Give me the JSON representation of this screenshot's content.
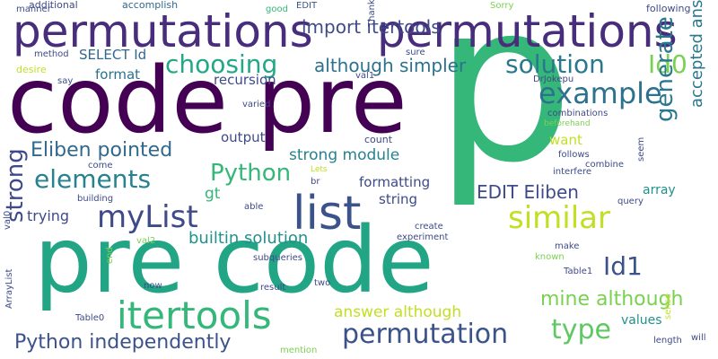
{
  "words": [
    {
      "text": "p",
      "color": "#35b779",
      "rot": 0
    },
    {
      "text": "code pre",
      "color": "#440154",
      "rot": 0
    },
    {
      "text": "pre code",
      "color": "#21a585",
      "rot": 0
    },
    {
      "text": "permutations",
      "color": "#472d7b",
      "rot": 0
    },
    {
      "text": "permutations",
      "color": "#472d7b",
      "rot": 0
    },
    {
      "text": "list",
      "color": "#3b528b",
      "rot": 0
    },
    {
      "text": "itertools",
      "color": "#35b779",
      "rot": 0
    },
    {
      "text": "myList",
      "color": "#3e4a89",
      "rot": 0
    },
    {
      "text": "similar",
      "color": "#c2df23",
      "rot": 0
    },
    {
      "text": "permutation",
      "color": "#3b528b",
      "rot": 0
    },
    {
      "text": "example",
      "color": "#2c728e",
      "rot": 0
    },
    {
      "text": "choosing",
      "color": "#22a884",
      "rot": 0
    },
    {
      "text": "solution",
      "color": "#2a788e",
      "rot": 0
    },
    {
      "text": "Id0",
      "color": "#7ad151",
      "rot": 0
    },
    {
      "text": "elements",
      "color": "#26828e",
      "rot": 0
    },
    {
      "text": "Python",
      "color": "#35b779",
      "rot": 0
    },
    {
      "text": "Eliben pointed",
      "color": "#31688e",
      "rot": 0
    },
    {
      "text": "Python independently",
      "color": "#3b528b",
      "rot": 0
    },
    {
      "text": "type",
      "color": "#5ec962",
      "rot": 0
    },
    {
      "text": "mine although",
      "color": "#7ad151",
      "rot": 0
    },
    {
      "text": "generate",
      "color": "#2a788e",
      "rot": -90
    },
    {
      "text": "strong",
      "color": "#3e4a89",
      "rot": -90
    },
    {
      "text": "accepted answer",
      "color": "#2a788e",
      "rot": -90
    },
    {
      "text": "Id1",
      "color": "#3b528b",
      "rot": 0
    },
    {
      "text": "EDIT Eliben",
      "color": "#3e4a89",
      "rot": 0
    },
    {
      "text": "although simpler",
      "color": "#2c728e",
      "rot": 0
    },
    {
      "text": "strong module",
      "color": "#26828e",
      "rot": 0
    },
    {
      "text": "builtin solution",
      "color": "#21918c",
      "rot": 0
    },
    {
      "text": "import itertools",
      "color": "#3e4a89",
      "rot": 0
    },
    {
      "text": "answer although",
      "color": "#c2df23",
      "rot": 0
    },
    {
      "text": "SELECT Id",
      "color": "#31688e",
      "rot": 0
    },
    {
      "text": "format",
      "color": "#2c728e",
      "rot": 0
    },
    {
      "text": "recursion",
      "color": "#3e4a89",
      "rot": 0
    },
    {
      "text": "output",
      "color": "#3e4a89",
      "rot": 0
    },
    {
      "text": "formatting",
      "color": "#3e4a89",
      "rot": 0
    },
    {
      "text": "string",
      "color": "#3e4a89",
      "rot": 0
    },
    {
      "text": "trying",
      "color": "#3e4a89",
      "rot": 0
    },
    {
      "text": "gt",
      "color": "#35b779",
      "rot": 0
    },
    {
      "text": "want",
      "color": "#c2df23",
      "rot": 0
    },
    {
      "text": "array",
      "color": "#21918c",
      "rot": 0
    },
    {
      "text": "values",
      "color": "#21918c",
      "rot": 0
    },
    {
      "text": "additional",
      "color": "#3e4a89",
      "rot": 0
    },
    {
      "text": "accomplish",
      "color": "#31688e",
      "rot": 0
    },
    {
      "text": "good",
      "color": "#35b779",
      "rot": 0
    },
    {
      "text": "EDIT",
      "color": "#3b528b",
      "rot": 0
    },
    {
      "text": "Sorry",
      "color": "#7ad151",
      "rot": 0
    },
    {
      "text": "following",
      "color": "#3e4a89",
      "rot": 0
    },
    {
      "text": "manner",
      "color": "#3e4a89",
      "rot": 0
    },
    {
      "text": "method",
      "color": "#3e4a89",
      "rot": 0
    },
    {
      "text": "desire",
      "color": "#c2df23",
      "rot": 0
    },
    {
      "text": "say",
      "color": "#3e4a89",
      "rot": 0
    },
    {
      "text": "sure",
      "color": "#3e4a89",
      "rot": 0
    },
    {
      "text": "val1",
      "color": "#3e4a89",
      "rot": 0
    },
    {
      "text": "DrJokepu",
      "color": "#3e4a89",
      "rot": 0
    },
    {
      "text": "Thank",
      "color": "#3e4a89",
      "rot": -90
    },
    {
      "text": "varied",
      "color": "#3e4a89",
      "rot": 0
    },
    {
      "text": "combinations",
      "color": "#3e4a89",
      "rot": 0
    },
    {
      "text": "beforehand",
      "color": "#7ad151",
      "rot": 0
    },
    {
      "text": "count",
      "color": "#3e4a89",
      "rot": 0
    },
    {
      "text": "follows",
      "color": "#3e4a89",
      "rot": 0
    },
    {
      "text": "interfere",
      "color": "#3e4a89",
      "rot": 0
    },
    {
      "text": "combine",
      "color": "#3e4a89",
      "rot": 0
    },
    {
      "text": "seem",
      "color": "#3e4a89",
      "rot": -90
    },
    {
      "text": "come",
      "color": "#3e4a89",
      "rot": 0
    },
    {
      "text": "Lets",
      "color": "#c2df23",
      "rot": 0
    },
    {
      "text": "br",
      "color": "#3e4a89",
      "rot": 0
    },
    {
      "text": "query",
      "color": "#3e4a89",
      "rot": 0
    },
    {
      "text": "building",
      "color": "#3e4a89",
      "rot": 0
    },
    {
      "text": "able",
      "color": "#3e4a89",
      "rot": 0
    },
    {
      "text": "val0",
      "color": "#3e4a89",
      "rot": -90
    },
    {
      "text": "create",
      "color": "#3e4a89",
      "rot": 0
    },
    {
      "text": "experiment",
      "color": "#3e4a89",
      "rot": 0
    },
    {
      "text": "val2",
      "color": "#7ad151",
      "rot": 0
    },
    {
      "text": "make",
      "color": "#3e4a89",
      "rot": 0
    },
    {
      "text": "known",
      "color": "#7ad151",
      "rot": 0
    },
    {
      "text": "ArrayList",
      "color": "#3e4a89",
      "rot": -90
    },
    {
      "text": "end",
      "color": "#7ad151",
      "rot": -90
    },
    {
      "text": "Table1",
      "color": "#3e4a89",
      "rot": 0
    },
    {
      "text": "subqueries",
      "color": "#3e4a89",
      "rot": 0
    },
    {
      "text": "now",
      "color": "#3e4a89",
      "rot": 0
    },
    {
      "text": "result",
      "color": "#3e4a89",
      "rot": 0
    },
    {
      "text": "two",
      "color": "#3e4a89",
      "rot": 0
    },
    {
      "text": "Table0",
      "color": "#3e4a89",
      "rot": 0
    },
    {
      "text": "length",
      "color": "#3e4a89",
      "rot": 0
    },
    {
      "text": "sense",
      "color": "#c2df23",
      "rot": -90
    },
    {
      "text": "will",
      "color": "#3e4a89",
      "rot": 0
    },
    {
      "text": "mention",
      "color": "#7ad151",
      "rot": 0
    }
  ]
}
